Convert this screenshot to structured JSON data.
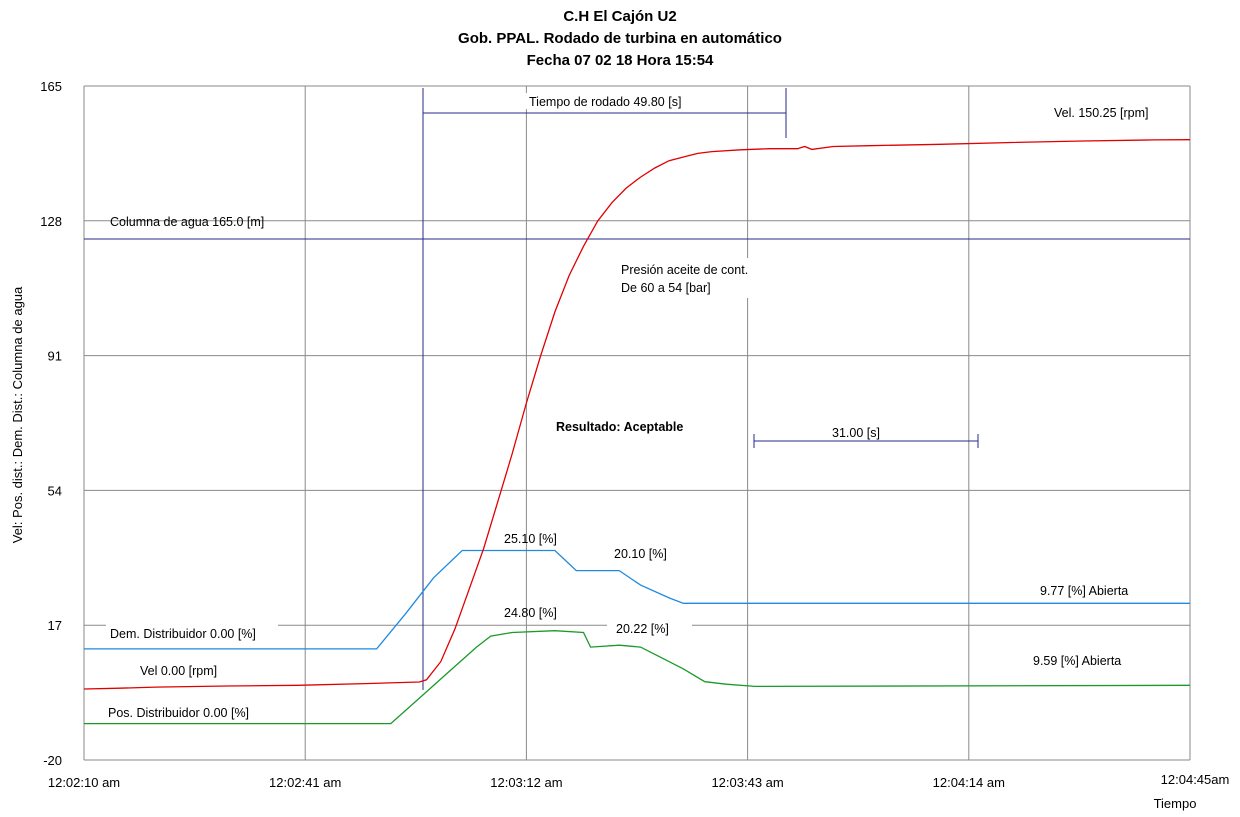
{
  "chart_data": {
    "type": "line",
    "title": [
      "C.H El Cajón U2",
      "Gob. PPAL. Rodado de turbina en automático",
      "Fecha 07 02 18   Hora 15:54"
    ],
    "ylabel": "Vel: Pos. dist.: Dem. Dist.: Columna de agua",
    "xlabel": "Tiempo",
    "ylim": [
      -20,
      165
    ],
    "yticks": [
      "165",
      "128",
      "91",
      "54",
      "17",
      "-20"
    ],
    "xlim_seconds": [
      0,
      155
    ],
    "xticks": [
      "12:02:10 am",
      "12:02:41 am",
      "12:03:12 am",
      "12:03:43 am",
      "12:04:14 am",
      "12:04:45am"
    ],
    "grid": true,
    "series": [
      {
        "key": "vel",
        "color": "#e00000",
        "points": [
          [
            0,
            -0.5
          ],
          [
            5,
            -0.3
          ],
          [
            10,
            0
          ],
          [
            20,
            0.3
          ],
          [
            30,
            0.5
          ],
          [
            40,
            1
          ],
          [
            47,
            1.4
          ],
          [
            48,
            2
          ],
          [
            50,
            7
          ],
          [
            52,
            16
          ],
          [
            54,
            27
          ],
          [
            56,
            38
          ],
          [
            58,
            51
          ],
          [
            60,
            64
          ],
          [
            62,
            78
          ],
          [
            64,
            91
          ],
          [
            66,
            103
          ],
          [
            68,
            113
          ],
          [
            70,
            121
          ],
          [
            72,
            128
          ],
          [
            74,
            133
          ],
          [
            76,
            137
          ],
          [
            78,
            140
          ],
          [
            80,
            142.5
          ],
          [
            82,
            144.5
          ],
          [
            84,
            145.5
          ],
          [
            86,
            146.5
          ],
          [
            88,
            147
          ],
          [
            92,
            147.5
          ],
          [
            96,
            147.8
          ],
          [
            100,
            147.8
          ],
          [
            101,
            148.4
          ],
          [
            102,
            147.6
          ],
          [
            105,
            148.4
          ],
          [
            110,
            148.6
          ],
          [
            120,
            149
          ],
          [
            130,
            149.5
          ],
          [
            140,
            149.9
          ],
          [
            150,
            150.2
          ],
          [
            155,
            150.25
          ]
        ]
      },
      {
        "key": "dem",
        "color": "#1f8ae0",
        "points": [
          [
            0,
            10.5
          ],
          [
            41,
            10.5
          ],
          [
            45,
            20
          ],
          [
            49,
            30
          ],
          [
            53,
            37.5
          ],
          [
            61,
            37.5
          ],
          [
            66,
            37.5
          ],
          [
            69,
            32
          ],
          [
            75,
            32
          ],
          [
            78,
            28
          ],
          [
            82,
            24.5
          ],
          [
            84,
            23
          ],
          [
            155,
            23
          ]
        ]
      },
      {
        "key": "pos",
        "color": "#1a9a2a",
        "points": [
          [
            0,
            -10
          ],
          [
            43,
            -10
          ],
          [
            47,
            -3
          ],
          [
            51,
            4
          ],
          [
            55,
            11
          ],
          [
            57,
            14
          ],
          [
            60,
            15
          ],
          [
            66,
            15.5
          ],
          [
            70,
            15
          ],
          [
            71,
            11
          ],
          [
            75,
            11.5
          ],
          [
            78,
            11
          ],
          [
            80,
            9
          ],
          [
            84,
            5
          ],
          [
            87,
            1.5
          ],
          [
            90,
            0.8
          ],
          [
            94,
            0.2
          ],
          [
            155,
            0.5
          ]
        ]
      }
    ],
    "reference_lines": [
      {
        "key": "columna",
        "color": "#2a2a8a",
        "y": 123,
        "label": "Columna de agua 165.0 [m]"
      }
    ],
    "annotations": {
      "tiempo_rodado": "Tiempo de rodado 49.80 [s]",
      "vel_end": "Vel. 150.25 [rpm]",
      "presion_1": "Presión aceite de cont.",
      "presion_2": "De 60 a 54 [bar]",
      "resultado": "Resultado: Aceptable",
      "intervalo": "31.00 [s]",
      "dem_peak": "25.10 [%]",
      "dem_mid": "20.10 [%]",
      "dem_end": "9.77 [%] Abierta",
      "pos_peak": "24.80 [%]",
      "pos_mid": "20.22 [%]",
      "pos_end": "9.59 [%] Abierta",
      "dem_start": "Dem. Distribuidor 0.00 [%]",
      "vel_start": "Vel 0.00 [rpm]",
      "pos_start": "Pos. Distribuidor 0.00 [%]"
    },
    "legend": "none"
  }
}
